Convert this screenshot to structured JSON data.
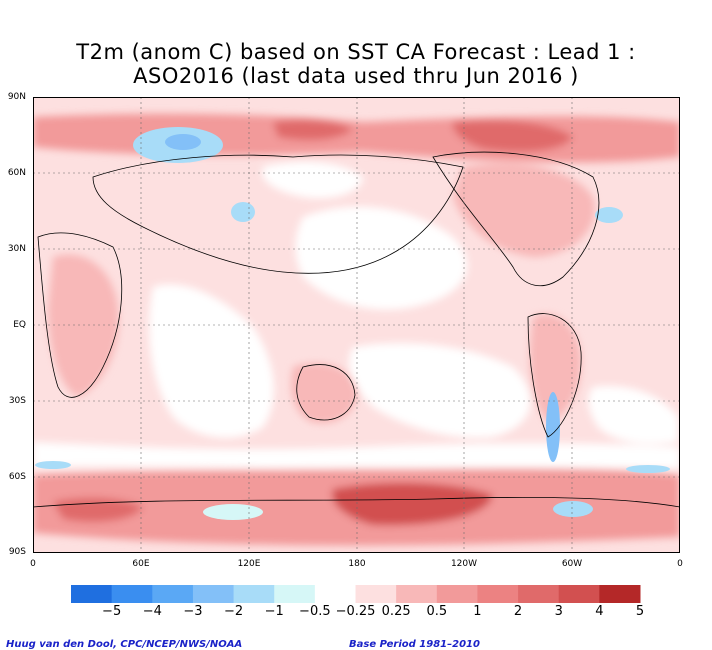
{
  "title": {
    "line1": "T2m (anom C) based on SST CA Forecast : Lead 1 :",
    "line2": "ASO2016 (last data used thru Jun 2016 )"
  },
  "lat_labels": [
    "90N",
    "60N",
    "30N",
    "EQ",
    "30S",
    "60S",
    "90S"
  ],
  "lon_labels": [
    "0",
    "60E",
    "120E",
    "180",
    "120W",
    "60W",
    "0"
  ],
  "colorbar": {
    "colors": [
      "#1f6fe0",
      "#3a8ef0",
      "#5aa8f5",
      "#83c0f8",
      "#a8dcf8",
      "#d6f7f7",
      "#ffffff",
      "#fde0e0",
      "#f8b8b8",
      "#f29a9a",
      "#ec8282",
      "#e06a6a",
      "#d25050",
      "#b42828"
    ],
    "labels": [
      "−5",
      "−4",
      "−3",
      "−2",
      "−1",
      "−0.5",
      "−0.25",
      "0.25",
      "0.5",
      "1",
      "2",
      "3",
      "4",
      "5"
    ]
  },
  "credits": {
    "left": "Huug van den Dool, CPC/NCEP/NWS/NOAA",
    "right": "Base Period 1981–2010"
  }
}
